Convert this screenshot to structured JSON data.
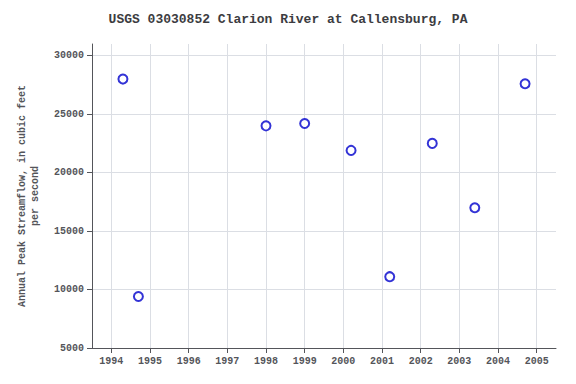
{
  "chart_data": {
    "type": "scatter",
    "title": "USGS 03030852 Clarion River at Callensburg, PA",
    "ylabel": "Annual Peak Streamflow, in cubic feet\nper second",
    "x": [
      1994.3,
      1994.7,
      1998.0,
      1999.0,
      2000.2,
      2001.2,
      2002.3,
      2003.4,
      2004.7
    ],
    "values": [
      28000,
      9400,
      24000,
      24200,
      21900,
      11100,
      22500,
      17000,
      27600
    ],
    "color": "#0000cc",
    "marker": "circle",
    "xlim": [
      1993.5,
      2005.5
    ],
    "ylim": [
      5000,
      31000
    ],
    "xticks": [
      1994,
      1995,
      1996,
      1997,
      1998,
      1999,
      2000,
      2001,
      2002,
      2003,
      2004,
      2005
    ],
    "yticks": [
      5000,
      10000,
      15000,
      20000,
      25000,
      30000
    ],
    "grid": true
  }
}
